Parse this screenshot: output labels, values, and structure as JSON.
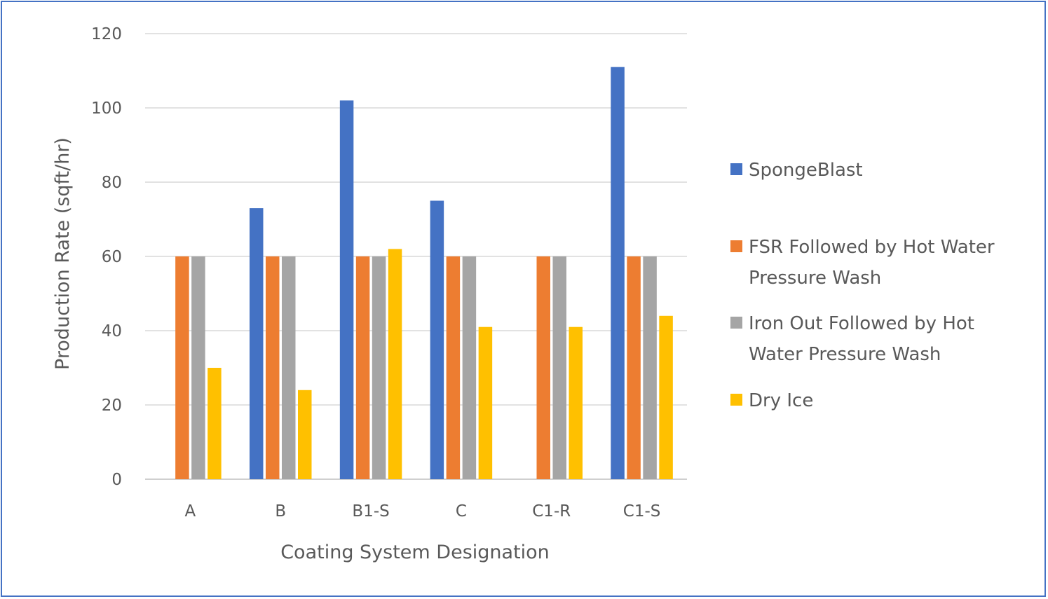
{
  "chart_data": {
    "type": "bar",
    "title": "",
    "xlabel": "Coating System Designation",
    "ylabel": "Production Rate (sqft/hr)",
    "categories": [
      "A",
      "B",
      "B1-S",
      "C",
      "C1-R",
      "C1-S"
    ],
    "ylim": [
      0,
      120
    ],
    "yticks": [
      0,
      20,
      40,
      60,
      80,
      100,
      120
    ],
    "grid": true,
    "legend_position": "right",
    "series": [
      {
        "name": "SpongeBlast",
        "legend_lines": [
          "SpongeBlast"
        ],
        "color": "#4472c4",
        "values": [
          null,
          73,
          102,
          75,
          null,
          111
        ]
      },
      {
        "name": "FSR Followed by Hot Water Pressure Wash",
        "legend_lines": [
          "FSR Followed by Hot Water",
          "Pressure Wash"
        ],
        "color": "#ed7d31",
        "values": [
          60,
          60,
          60,
          60,
          60,
          60
        ]
      },
      {
        "name": "Iron Out Followed by Hot Water Pressure Wash",
        "legend_lines": [
          "Iron Out Followed by Hot",
          "Water Pressure Wash"
        ],
        "color": "#a5a5a5",
        "values": [
          60,
          60,
          60,
          60,
          60,
          60
        ]
      },
      {
        "name": "Dry Ice",
        "legend_lines": [
          "Dry Ice"
        ],
        "color": "#ffc000",
        "values": [
          30,
          24,
          62,
          41,
          41,
          44
        ]
      }
    ]
  }
}
